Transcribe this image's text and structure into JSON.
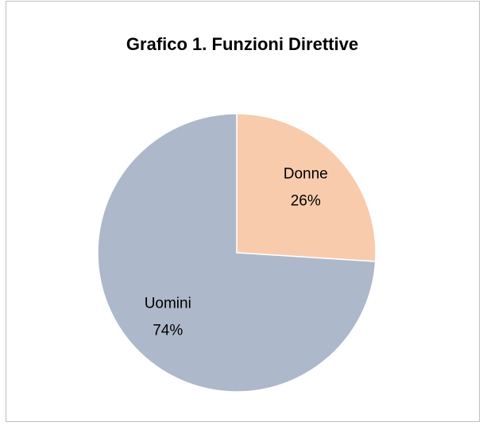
{
  "chart_data": {
    "type": "pie",
    "title": "Grafico 1. Funzioni Direttive",
    "categories": [
      "Donne",
      "Uomini"
    ],
    "values": [
      26,
      74
    ],
    "value_labels": [
      "26%",
      "74%"
    ],
    "colors": [
      "#f8cbad",
      "#adb9ca"
    ]
  }
}
